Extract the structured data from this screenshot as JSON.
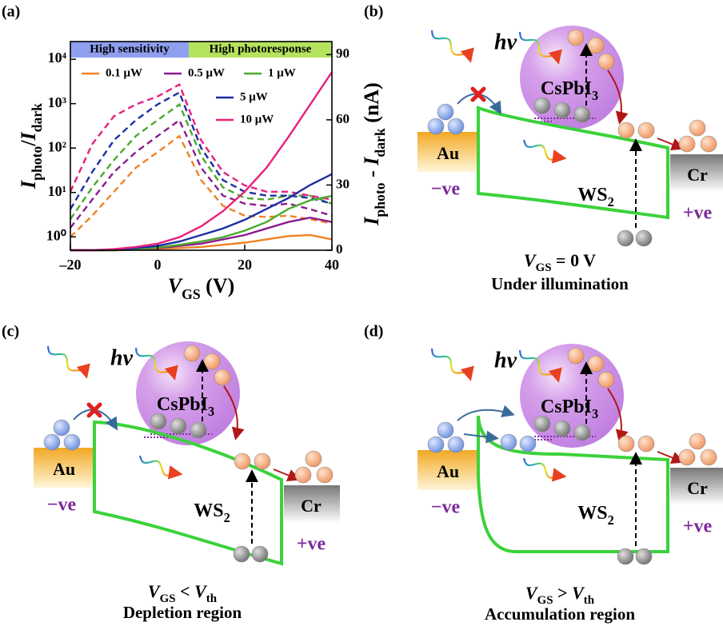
{
  "chart_data": {
    "type": "line",
    "panel_label": "(a)",
    "x": [
      -20,
      -15,
      -10,
      -5,
      0,
      5,
      10,
      15,
      20,
      25,
      30,
      35,
      40
    ],
    "xlim": [
      -20,
      40
    ],
    "xticks": [
      {
        "value": -20,
        "label": "–20"
      },
      0,
      20,
      40
    ],
    "xlabel": [
      {
        "text": "V",
        "italic": true
      },
      {
        "text": "GS",
        "sub": true
      },
      {
        "text": " (V)"
      }
    ],
    "ylabel": [
      {
        "text": "I",
        "italic": true
      },
      {
        "text": "photo",
        "sub": true
      },
      {
        "text": "/"
      },
      {
        "text": "I",
        "italic": true
      },
      {
        "text": "dark",
        "sub": true
      }
    ],
    "y2label": [
      {
        "text": "I",
        "italic": true
      },
      {
        "text": "photo",
        "sub": true
      },
      {
        "text": " - "
      },
      {
        "text": "I",
        "italic": true
      },
      {
        "text": "dark",
        "sub": true
      },
      {
        "text": " (nA)"
      }
    ],
    "yscale": "log",
    "ylim": [
      0.5,
      25000
    ],
    "yticks": [
      {
        "value": 1,
        "label": "10⁰"
      },
      {
        "value": 10,
        "label": "10¹"
      },
      {
        "value": 100,
        "label": "10²"
      },
      {
        "value": 1000,
        "label": "10³"
      },
      {
        "value": 10000,
        "label": "10⁴"
      }
    ],
    "y2lim": [
      0,
      96
    ],
    "y2ticks": [
      0,
      30,
      60,
      90
    ],
    "annotations": [
      {
        "text": "High sensitivity",
        "color": "#8f9ff0"
      },
      {
        "text": "High photoresponse",
        "color": "#b6e35e"
      }
    ],
    "series": [
      {
        "name": "0.1 μW",
        "color": "#f08224",
        "linestyle": "dashed",
        "values": [
          1,
          3.0,
          10.4,
          36,
          81,
          186,
          19,
          5.0,
          3.0,
          2.8,
          3.0,
          2.5,
          2.0
        ]
      },
      {
        "name": "0.5 μW",
        "color": "#8b1c8e",
        "linestyle": "dashed",
        "values": [
          1.6,
          6.9,
          29,
          81,
          186,
          424,
          36,
          8.5,
          5.6,
          5.0,
          5.6,
          4.2,
          3.0
        ]
      },
      {
        "name": "1 μW",
        "color": "#4caa2c",
        "linestyle": "dashed",
        "values": [
          2.5,
          13,
          54,
          186,
          424,
          960,
          66,
          13,
          7.5,
          6.9,
          8.5,
          8.5,
          5.6
        ]
      },
      {
        "name": "5 μW",
        "color": "#1c2fa3",
        "linestyle": "dashed",
        "values": [
          4.2,
          29,
          150,
          424,
          960,
          1780,
          100,
          19,
          10.4,
          8.5,
          8.5,
          7.5,
          5.6
        ]
      },
      {
        "name": "10 μW",
        "color": "#e8207c",
        "linestyle": "dashed",
        "values": [
          10.4,
          123,
          520,
          960,
          1450,
          2700,
          150,
          29,
          14.4,
          10.4,
          10.4,
          8.5,
          6.9
        ]
      },
      {
        "color": "#f08224",
        "linestyle": "solid",
        "axis": "y2",
        "values": [
          0,
          0,
          0,
          0.3,
          0.6,
          1,
          1.5,
          2.5,
          3.5,
          5,
          6.5,
          7,
          5
        ]
      },
      {
        "color": "#8b1c8e",
        "linestyle": "solid",
        "axis": "y2",
        "values": [
          0,
          0,
          0,
          0.5,
          1,
          2,
          3,
          5,
          7,
          10,
          13,
          15,
          13
        ]
      },
      {
        "color": "#4caa2c",
        "linestyle": "solid",
        "axis": "y2",
        "values": [
          0,
          0,
          0,
          0.6,
          1.2,
          2.5,
          4,
          6,
          9,
          13,
          19,
          23,
          25
        ]
      },
      {
        "color": "#1c2fa3",
        "linestyle": "solid",
        "axis": "y2",
        "values": [
          0,
          0,
          0.3,
          1,
          2,
          4,
          7,
          10,
          14,
          19,
          24,
          30,
          35
        ]
      },
      {
        "color": "#e8207c",
        "linestyle": "solid",
        "axis": "y2",
        "values": [
          0,
          0,
          0.5,
          1.5,
          3,
          6,
          11,
          18,
          27,
          38,
          52,
          67,
          82
        ]
      }
    ]
  },
  "diagrams": [
    {
      "label": "(b)",
      "photon": "hv",
      "perovskite": [
        {
          "text": "CsPbI"
        },
        {
          "text": "3",
          "sub": true
        }
      ],
      "left_contact": "Au",
      "left_bias": "−ve",
      "channel": [
        {
          "text": "WS"
        },
        {
          "text": "2",
          "sub": true
        }
      ],
      "right_contact": "Cr",
      "right_bias": "+ve",
      "condition": [
        {
          "text": "V",
          "italic": true
        },
        {
          "text": "GS",
          "sub": true
        },
        {
          "text": " = 0 V"
        }
      ],
      "region": "Under illumination"
    },
    {
      "label": "(c)",
      "photon": "hv",
      "perovskite": [
        {
          "text": "CsPbI"
        },
        {
          "text": "3",
          "sub": true
        }
      ],
      "left_contact": "Au",
      "left_bias": "−ve",
      "channel": [
        {
          "text": "WS"
        },
        {
          "text": "2",
          "sub": true
        }
      ],
      "right_contact": "Cr",
      "right_bias": "+ve",
      "condition": [
        {
          "text": "V",
          "italic": true
        },
        {
          "text": "GS",
          "sub": true
        },
        {
          "text": " < "
        },
        {
          "text": "V",
          "italic": true
        },
        {
          "text": "th",
          "sub": true
        }
      ],
      "region": "Depletion region"
    },
    {
      "label": "(d)",
      "photon": "hv",
      "perovskite": [
        {
          "text": "CsPbI"
        },
        {
          "text": "3",
          "sub": true
        }
      ],
      "left_contact": "Au",
      "left_bias": "−ve",
      "channel": [
        {
          "text": "WS"
        },
        {
          "text": "2",
          "sub": true
        }
      ],
      "right_contact": "Cr",
      "right_bias": "+ve",
      "condition": [
        {
          "text": "V",
          "italic": true
        },
        {
          "text": "GS",
          "sub": true
        },
        {
          "text": " > "
        },
        {
          "text": "V",
          "italic": true
        },
        {
          "text": "th",
          "sub": true
        }
      ],
      "region": "Accumulation region"
    }
  ]
}
